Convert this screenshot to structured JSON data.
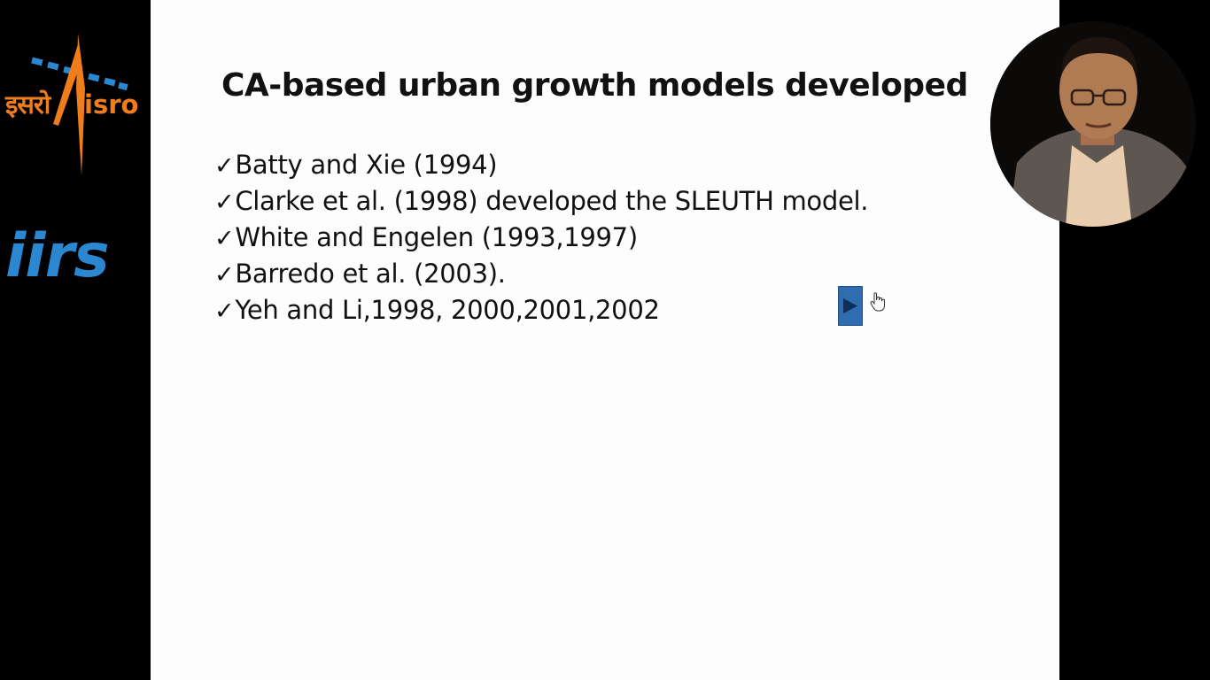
{
  "logos": {
    "isro_hindi": "इसरो",
    "isro_latin": "isro",
    "iirs": "iirs"
  },
  "slide": {
    "title": "CA-based urban growth models developed",
    "bullets": [
      "Batty and Xie (1994)",
      "Clarke et al. (1998) developed the SLEUTH model.",
      "White and Engelen (1993,1997)",
      "Barredo et al. (2003).",
      "Yeh and Li,1998, 2000,2001,2002"
    ],
    "check_mark": "✓"
  },
  "icons": {
    "play_button": "play-icon",
    "cursor": "hand-cursor-icon"
  },
  "colors": {
    "isro_orange": "#f07d1b",
    "isro_blue": "#2a87d0",
    "play_blue": "#2f6db0",
    "slide_bg": "#fdfdfd"
  }
}
